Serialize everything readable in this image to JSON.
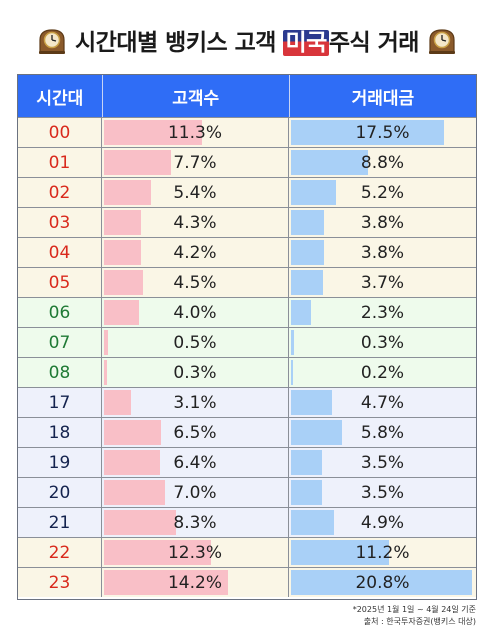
{
  "title": {
    "part1": "시간대별 뱅키스 고객 ",
    "flag_text": "미국",
    "part2": "주식 거래"
  },
  "icons": [
    "mantel-clock-icon",
    "mantel-clock-icon"
  ],
  "colors": {
    "header_bg": "#2f6df6",
    "customer_bar": "#f9bfc7",
    "amount_bar": "#a9d0f7",
    "group_night": "#faf6e6",
    "group_morning": "#eefbec",
    "group_evening": "#eef1fb",
    "hour_red": "#d9291c",
    "hour_green": "#1f7a35",
    "hour_navy": "#14234e"
  },
  "chart_data": {
    "type": "table",
    "columns": [
      "시간대",
      "고객수",
      "거래대금"
    ],
    "rows": [
      {
        "hour": "00",
        "customers": "11.3%",
        "amount": "17.5%",
        "cust_pct": 11.3,
        "amt_pct": 17.5,
        "group": "night"
      },
      {
        "hour": "01",
        "customers": "7.7%",
        "amount": "8.8%",
        "cust_pct": 7.7,
        "amt_pct": 8.8,
        "group": "night"
      },
      {
        "hour": "02",
        "customers": "5.4%",
        "amount": "5.2%",
        "cust_pct": 5.4,
        "amt_pct": 5.2,
        "group": "night"
      },
      {
        "hour": "03",
        "customers": "4.3%",
        "amount": "3.8%",
        "cust_pct": 4.3,
        "amt_pct": 3.8,
        "group": "night"
      },
      {
        "hour": "04",
        "customers": "4.2%",
        "amount": "3.8%",
        "cust_pct": 4.2,
        "amt_pct": 3.8,
        "group": "night"
      },
      {
        "hour": "05",
        "customers": "4.5%",
        "amount": "3.7%",
        "cust_pct": 4.5,
        "amt_pct": 3.7,
        "group": "night"
      },
      {
        "hour": "06",
        "customers": "4.0%",
        "amount": "2.3%",
        "cust_pct": 4.0,
        "amt_pct": 2.3,
        "group": "morning"
      },
      {
        "hour": "07",
        "customers": "0.5%",
        "amount": "0.3%",
        "cust_pct": 0.5,
        "amt_pct": 0.3,
        "group": "morning"
      },
      {
        "hour": "08",
        "customers": "0.3%",
        "amount": "0.2%",
        "cust_pct": 0.3,
        "amt_pct": 0.2,
        "group": "morning"
      },
      {
        "hour": "17",
        "customers": "3.1%",
        "amount": "4.7%",
        "cust_pct": 3.1,
        "amt_pct": 4.7,
        "group": "evening"
      },
      {
        "hour": "18",
        "customers": "6.5%",
        "amount": "5.8%",
        "cust_pct": 6.5,
        "amt_pct": 5.8,
        "group": "evening"
      },
      {
        "hour": "19",
        "customers": "6.4%",
        "amount": "3.5%",
        "cust_pct": 6.4,
        "amt_pct": 3.5,
        "group": "evening"
      },
      {
        "hour": "20",
        "customers": "7.0%",
        "amount": "3.5%",
        "cust_pct": 7.0,
        "amt_pct": 3.5,
        "group": "evening"
      },
      {
        "hour": "21",
        "customers": "8.3%",
        "amount": "4.9%",
        "cust_pct": 8.3,
        "amt_pct": 4.9,
        "group": "evening"
      },
      {
        "hour": "22",
        "customers": "12.3%",
        "amount": "11.2%",
        "cust_pct": 12.3,
        "amt_pct": 11.2,
        "group": "night"
      },
      {
        "hour": "23",
        "customers": "14.2%",
        "amount": "20.8%",
        "cust_pct": 14.2,
        "amt_pct": 20.8,
        "group": "night"
      }
    ],
    "bar_scale_max": 21
  },
  "footnotes": [
    "*2025년 1월 1일 ~ 4월 24일 기준",
    "출처 : 한국투자증권(뱅키스 대상)"
  ]
}
